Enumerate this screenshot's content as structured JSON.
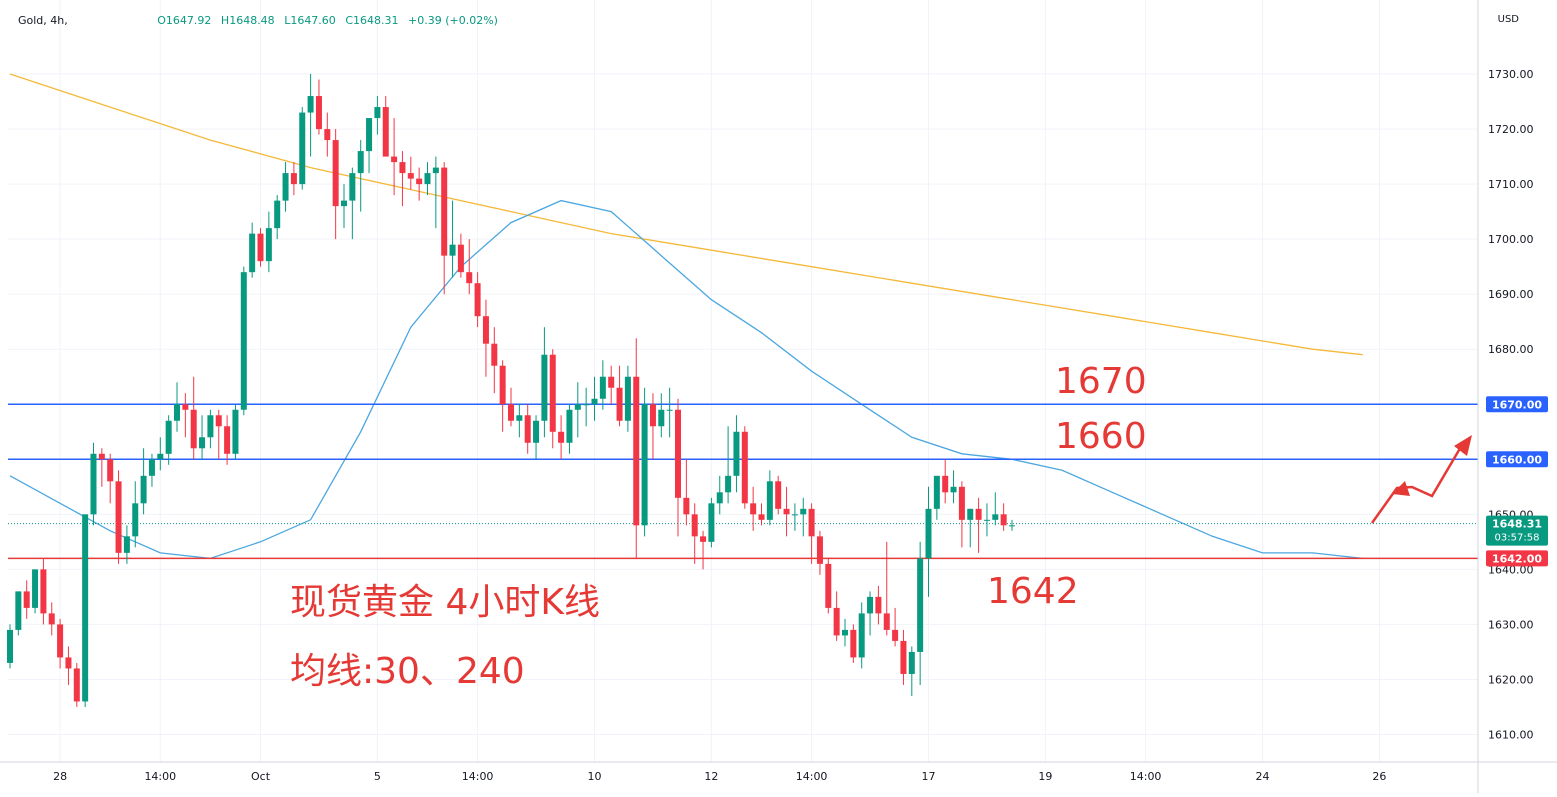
{
  "header": {
    "symbol": "Gold, 4h,",
    "open": "O1647.92",
    "high": "H1648.48",
    "low": "L1647.60",
    "close": "C1648.31",
    "change": "+0.39 (+0.02%)",
    "currency": "USD"
  },
  "annotations": {
    "title_line1": "现货黄金 4小时K线",
    "title_line2": "均线:30、240",
    "level_1670": "1670",
    "level_1660": "1660",
    "level_1642": "1642"
  },
  "price_tags": {
    "current_price": "1648.31",
    "countdown": "03:57:58",
    "line_1670": "1670.00",
    "line_1660": "1660.00",
    "line_1642": "1642.00"
  },
  "colors": {
    "up": "#089981",
    "down": "#f23645",
    "blue_line": "#2962ff",
    "red_line": "#e53935",
    "ma30": "#4ba7e0",
    "ma240": "#f5b93a",
    "annotation": "#e53935"
  },
  "chart_data": {
    "type": "candlestick",
    "ylim": [
      1605,
      1738
    ],
    "y_ticks": [
      "1610.00",
      "1620.00",
      "1630.00",
      "1640.00",
      "1650.00",
      "1660.00",
      "1670.00",
      "1680.00",
      "1690.00",
      "1700.00",
      "1710.00",
      "1720.00",
      "1730.00"
    ],
    "x_ticks": [
      {
        "label": "28",
        "index": 6
      },
      {
        "label": "14:00",
        "index": 18
      },
      {
        "label": "Oct",
        "index": 30
      },
      {
        "label": "5",
        "index": 44
      },
      {
        "label": "14:00",
        "index": 56
      },
      {
        "label": "10",
        "index": 70
      },
      {
        "label": "12",
        "index": 84
      },
      {
        "label": "14:00",
        "index": 96
      },
      {
        "label": "17",
        "index": 110
      },
      {
        "label": "19",
        "index": 124
      },
      {
        "label": "14:00",
        "index": 136
      },
      {
        "label": "24",
        "index": 150
      },
      {
        "label": "26",
        "index": 164
      }
    ],
    "candles": [
      [
        1623,
        1630,
        1622,
        1629
      ],
      [
        1629,
        1636,
        1628,
        1636
      ],
      [
        1636,
        1638,
        1631,
        1633
      ],
      [
        1633,
        1640,
        1632,
        1640
      ],
      [
        1640,
        1642,
        1630,
        1632
      ],
      [
        1632,
        1634,
        1628,
        1630
      ],
      [
        1630,
        1631,
        1622,
        1624
      ],
      [
        1624,
        1626,
        1619,
        1622
      ],
      [
        1622,
        1623,
        1615,
        1616
      ],
      [
        1616,
        1650,
        1615,
        1650
      ],
      [
        1650,
        1663,
        1648,
        1661
      ],
      [
        1661,
        1662,
        1655,
        1660
      ],
      [
        1660,
        1661,
        1652,
        1656
      ],
      [
        1656,
        1658,
        1641,
        1643
      ],
      [
        1643,
        1648,
        1641,
        1646
      ],
      [
        1646,
        1656,
        1644,
        1652
      ],
      [
        1652,
        1662,
        1650,
        1657
      ],
      [
        1657,
        1661,
        1655,
        1660
      ],
      [
        1660,
        1664,
        1658,
        1661
      ],
      [
        1661,
        1668,
        1659,
        1667
      ],
      [
        1667,
        1674,
        1665,
        1670
      ],
      [
        1670,
        1672,
        1664,
        1669
      ],
      [
        1669,
        1675,
        1660,
        1662
      ],
      [
        1662,
        1668,
        1660,
        1664
      ],
      [
        1664,
        1669,
        1662,
        1668
      ],
      [
        1668,
        1669,
        1660,
        1666
      ],
      [
        1666,
        1668,
        1659,
        1661
      ],
      [
        1661,
        1670,
        1660,
        1669
      ],
      [
        1669,
        1695,
        1668,
        1694
      ],
      [
        1694,
        1703,
        1693,
        1701
      ],
      [
        1701,
        1702,
        1695,
        1696
      ],
      [
        1696,
        1705,
        1694,
        1702
      ],
      [
        1702,
        1708,
        1700,
        1707
      ],
      [
        1707,
        1714,
        1705,
        1712
      ],
      [
        1712,
        1714,
        1708,
        1710
      ],
      [
        1710,
        1724,
        1709,
        1723
      ],
      [
        1723,
        1730,
        1715,
        1726
      ],
      [
        1726,
        1729,
        1719,
        1720
      ],
      [
        1720,
        1723,
        1715,
        1718
      ],
      [
        1718,
        1720,
        1700,
        1706
      ],
      [
        1706,
        1710,
        1702,
        1707
      ],
      [
        1707,
        1713,
        1700,
        1712
      ],
      [
        1712,
        1718,
        1705,
        1716
      ],
      [
        1716,
        1722,
        1712,
        1722
      ],
      [
        1722,
        1726,
        1719,
        1724
      ],
      [
        1724,
        1726,
        1715,
        1715
      ],
      [
        1715,
        1722,
        1708,
        1714
      ],
      [
        1714,
        1716,
        1706,
        1712
      ],
      [
        1712,
        1715,
        1709,
        1711
      ],
      [
        1711,
        1713,
        1707,
        1710
      ],
      [
        1710,
        1714,
        1708,
        1712
      ],
      [
        1712,
        1715,
        1702,
        1713
      ],
      [
        1713,
        1714,
        1690,
        1697
      ],
      [
        1697,
        1707,
        1693,
        1699
      ],
      [
        1699,
        1701,
        1693,
        1694
      ],
      [
        1694,
        1700,
        1690,
        1692
      ],
      [
        1692,
        1694,
        1684,
        1686
      ],
      [
        1686,
        1689,
        1675,
        1681
      ],
      [
        1681,
        1684,
        1672,
        1677
      ],
      [
        1677,
        1678,
        1665,
        1670
      ],
      [
        1670,
        1673,
        1666,
        1667
      ],
      [
        1667,
        1670,
        1664,
        1668
      ],
      [
        1668,
        1670,
        1661,
        1663
      ],
      [
        1663,
        1668,
        1660,
        1667
      ],
      [
        1667,
        1684,
        1664,
        1679
      ],
      [
        1679,
        1680,
        1662,
        1665
      ],
      [
        1665,
        1668,
        1660,
        1663
      ],
      [
        1663,
        1670,
        1661,
        1669
      ],
      [
        1669,
        1674,
        1664,
        1670
      ],
      [
        1670,
        1673,
        1666,
        1670
      ],
      [
        1670,
        1675,
        1667,
        1671
      ],
      [
        1671,
        1678,
        1669,
        1675
      ],
      [
        1675,
        1677,
        1670,
        1673
      ],
      [
        1673,
        1677,
        1666,
        1667
      ],
      [
        1667,
        1677,
        1665,
        1675
      ],
      [
        1675,
        1682,
        1642,
        1648
      ],
      [
        1648,
        1673,
        1646,
        1670
      ],
      [
        1670,
        1672,
        1660,
        1666
      ],
      [
        1666,
        1672,
        1664,
        1669
      ],
      [
        1669,
        1673,
        1664,
        1669
      ],
      [
        1669,
        1671,
        1646,
        1653
      ],
      [
        1653,
        1660,
        1648,
        1650
      ],
      [
        1650,
        1652,
        1641,
        1646
      ],
      [
        1646,
        1647,
        1640,
        1645
      ],
      [
        1645,
        1653,
        1644,
        1652
      ],
      [
        1652,
        1657,
        1650,
        1654
      ],
      [
        1654,
        1666,
        1652,
        1657
      ],
      [
        1657,
        1668,
        1654,
        1665
      ],
      [
        1665,
        1666,
        1651,
        1652
      ],
      [
        1652,
        1655,
        1647,
        1650
      ],
      [
        1650,
        1652,
        1648,
        1649
      ],
      [
        1649,
        1658,
        1648,
        1656
      ],
      [
        1656,
        1657,
        1650,
        1651
      ],
      [
        1651,
        1655,
        1646,
        1650
      ],
      [
        1650,
        1652,
        1647,
        1650
      ],
      [
        1650,
        1653,
        1646,
        1651
      ],
      [
        1651,
        1652,
        1641,
        1646
      ],
      [
        1646,
        1647,
        1639,
        1641
      ],
      [
        1641,
        1642,
        1632,
        1633
      ],
      [
        1633,
        1636,
        1627,
        1628
      ],
      [
        1628,
        1631,
        1626,
        1629
      ],
      [
        1629,
        1630,
        1623,
        1624
      ],
      [
        1624,
        1634,
        1622,
        1632
      ],
      [
        1632,
        1636,
        1628,
        1635
      ],
      [
        1635,
        1637,
        1630,
        1632
      ],
      [
        1632,
        1645,
        1628,
        1629
      ],
      [
        1629,
        1633,
        1626,
        1627
      ],
      [
        1627,
        1629,
        1619,
        1621
      ],
      [
        1621,
        1626,
        1617,
        1625
      ],
      [
        1625,
        1645,
        1619,
        1642
      ],
      [
        1642,
        1655,
        1635,
        1651
      ],
      [
        1651,
        1656,
        1649,
        1657
      ],
      [
        1657,
        1660,
        1652,
        1654
      ],
      [
        1654,
        1658,
        1652,
        1655
      ],
      [
        1655,
        1656,
        1644,
        1649
      ],
      [
        1649,
        1651,
        1644,
        1651
      ],
      [
        1651,
        1653,
        1643,
        1649
      ],
      [
        1649,
        1652,
        1646,
        1649
      ],
      [
        1649,
        1654,
        1648,
        1650
      ],
      [
        1650,
        1652,
        1647,
        1648
      ],
      [
        1648,
        1649,
        1647,
        1648
      ]
    ],
    "ma30": [
      [
        0,
        1657
      ],
      [
        6,
        1652
      ],
      [
        12,
        1647
      ],
      [
        18,
        1643
      ],
      [
        24,
        1642
      ],
      [
        30,
        1645
      ],
      [
        36,
        1649
      ],
      [
        42,
        1665
      ],
      [
        48,
        1684
      ],
      [
        54,
        1695
      ],
      [
        60,
        1703
      ],
      [
        66,
        1707
      ],
      [
        72,
        1705
      ],
      [
        78,
        1697
      ],
      [
        84,
        1689
      ],
      [
        90,
        1683
      ],
      [
        96,
        1676
      ],
      [
        102,
        1670
      ],
      [
        108,
        1664
      ],
      [
        114,
        1661
      ],
      [
        120,
        1660
      ],
      [
        126,
        1658
      ],
      [
        132,
        1654
      ],
      [
        138,
        1650
      ],
      [
        144,
        1646
      ],
      [
        150,
        1643
      ],
      [
        156,
        1643
      ],
      [
        162,
        1642
      ]
    ],
    "ma240": [
      [
        0,
        1730
      ],
      [
        12,
        1724
      ],
      [
        24,
        1718
      ],
      [
        36,
        1713
      ],
      [
        48,
        1709
      ],
      [
        60,
        1705
      ],
      [
        72,
        1701
      ],
      [
        84,
        1698
      ],
      [
        96,
        1695
      ],
      [
        108,
        1692
      ],
      [
        120,
        1689
      ],
      [
        132,
        1686
      ],
      [
        144,
        1683
      ],
      [
        156,
        1680
      ],
      [
        162,
        1679
      ]
    ],
    "h_lines": [
      1670,
      1660,
      1642
    ],
    "current_price": 1648.31
  }
}
